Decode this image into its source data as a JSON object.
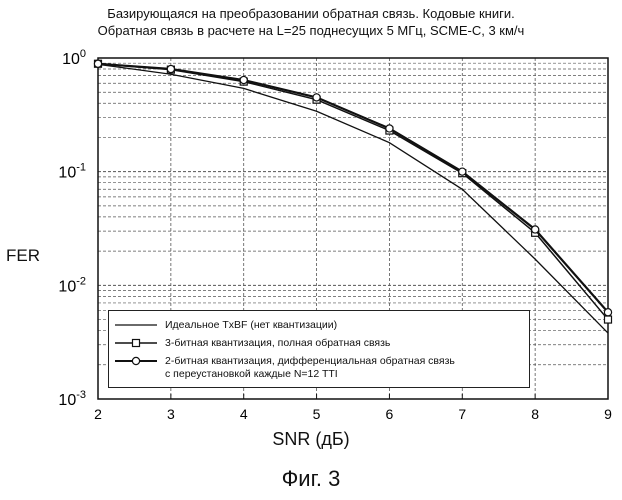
{
  "title_lines": [
    "Базирующаяся на преобразовании обратная связь. Кодовые книги.",
    "Обратная связь в расчете на L=25 поднесущих 5 МГц, SCME-C, 3 км/ч"
  ],
  "figure_caption": "Фиг. 3",
  "chart_data": {
    "type": "line",
    "title": "Базирующаяся на преобразовании обратная связь. Кодовые книги. Обратная связь в расчете на L=25 поднесущих 5 МГц, SCME-C, 3 км/ч",
    "xlabel": "SNR (дБ)",
    "ylabel": "FER",
    "xlim": [
      2,
      9
    ],
    "ylim": [
      0.001,
      1
    ],
    "yscale": "log",
    "grid": true,
    "legend_position": "bottom",
    "x_ticks": [
      "2",
      "3",
      "4",
      "5",
      "6",
      "7",
      "8",
      "9"
    ],
    "y_ticks": [
      {
        "base": "10",
        "exp": "0",
        "value": 1
      },
      {
        "base": "10",
        "exp": "-1",
        "value": 0.1
      },
      {
        "base": "10",
        "exp": "-2",
        "value": 0.01
      },
      {
        "base": "10",
        "exp": "-3",
        "value": 0.001
      }
    ],
    "series": [
      {
        "name": "Идеальное TxBF (нет квантизации)",
        "marker": "none",
        "x": [
          2,
          3,
          4,
          5,
          6,
          7,
          8,
          9
        ],
        "y": [
          0.88,
          0.72,
          0.54,
          0.34,
          0.18,
          0.07,
          0.017,
          0.0038
        ]
      },
      {
        "name": "3-битная квантизация, полная обратная связь",
        "marker": "square",
        "x": [
          2,
          3,
          4,
          5,
          6,
          7,
          8,
          9
        ],
        "y": [
          0.89,
          0.79,
          0.62,
          0.43,
          0.23,
          0.097,
          0.029,
          0.005
        ]
      },
      {
        "name_lines": [
          "2-битная квантизация, дифференциальная обратная связь",
          "с переустановкой каждые N=12 TTI"
        ],
        "marker": "circle",
        "x": [
          2,
          3,
          4,
          5,
          6,
          7,
          8,
          9
        ],
        "y": [
          0.89,
          0.8,
          0.64,
          0.45,
          0.24,
          0.1,
          0.031,
          0.0058
        ]
      }
    ]
  }
}
